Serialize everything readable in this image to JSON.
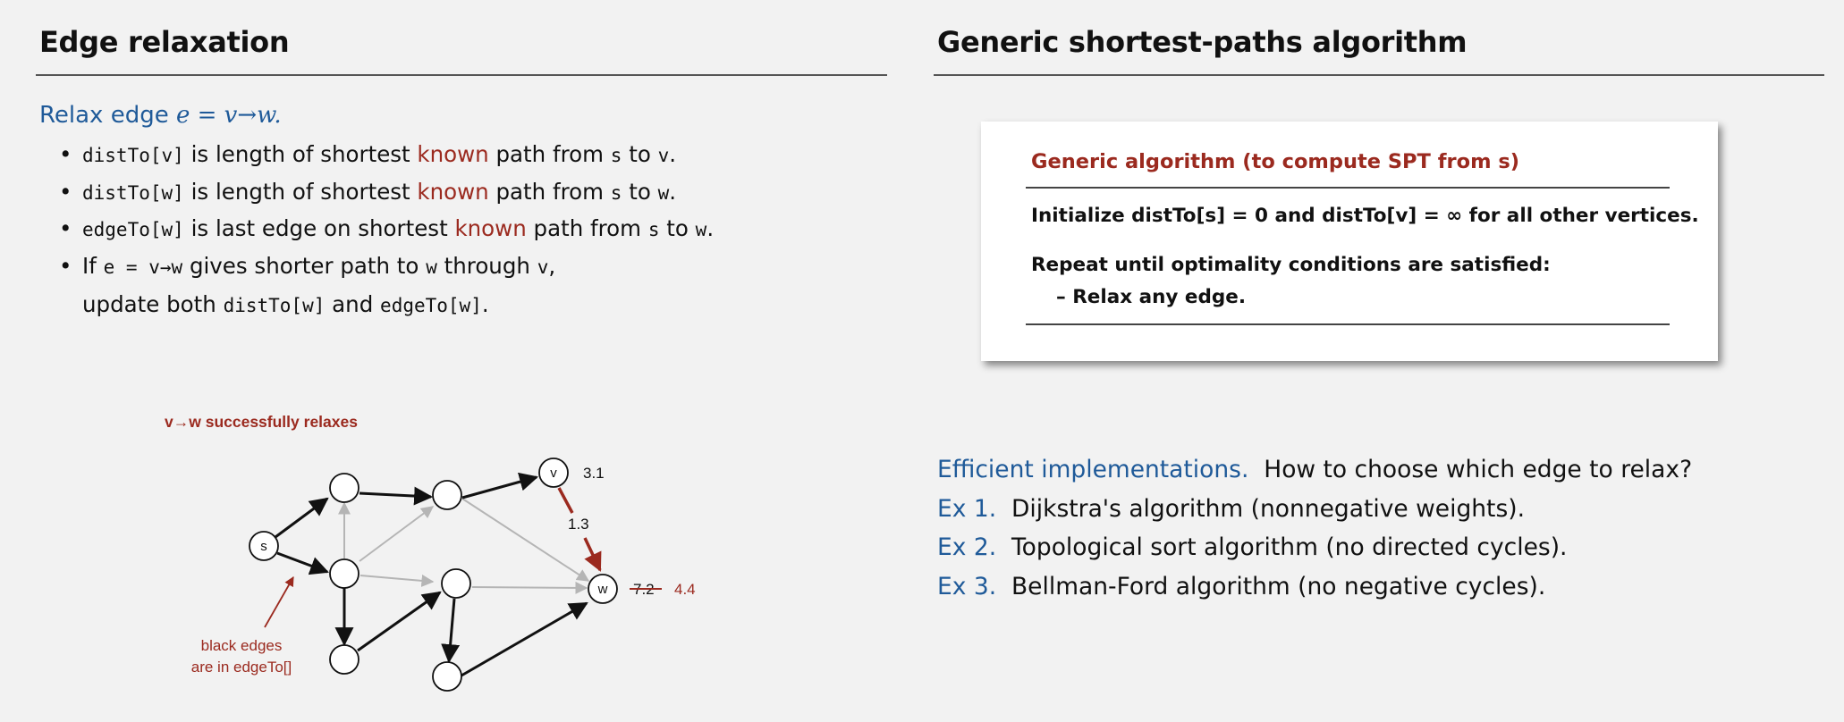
{
  "left": {
    "title": "Edge relaxation",
    "relax_label": "Relax edge ",
    "relax_edge": "e = v→w.",
    "bullets": [
      {
        "code": "distTo[v]",
        "t1": " is length of shortest ",
        "known": "known",
        "t2": " path from ",
        "s": "s",
        "t3": " to ",
        "end": "v",
        "t4": "."
      },
      {
        "code": "distTo[w]",
        "t1": " is length of shortest ",
        "known": "known",
        "t2": " path from ",
        "s": "s",
        "t3": " to ",
        "end": "w",
        "t4": "."
      },
      {
        "code": "edgeTo[w]",
        "t1": " is last edge on shortest ",
        "known": "known",
        "t2": " path from ",
        "s": "s",
        "t3": " to ",
        "end": "w",
        "t4": "."
      }
    ],
    "bullet4": {
      "if": "If ",
      "e": "e = v→w",
      "gives": " gives shorter path to ",
      "w": "w",
      "through": " through ",
      "v": "v",
      "comma": ",",
      "update": "update both ",
      "dist": "distTo[w]",
      "and": " and ",
      "edge": "edgeTo[w]",
      "period": "."
    },
    "diagram": {
      "caption": "v→w successfully relaxes",
      "label_s": "s",
      "label_v": "v",
      "label_w": "w",
      "dist_v": "3.1",
      "edge_weight": "1.3",
      "old_dist_w": "7.2",
      "new_dist_w": "4.4",
      "note_line1": "black edges",
      "note_line2": "are in edgeTo[]"
    }
  },
  "right": {
    "title": "Generic shortest-paths algorithm",
    "box": {
      "title": "Generic algorithm (to compute SPT from s)",
      "line1": "Initialize distTo[s] = 0 and distTo[v] = ∞ for all other vertices.",
      "line2": "Repeat until optimality conditions are satisfied:",
      "line3": "–  Relax any edge."
    },
    "impl": {
      "label": "Efficient implementations.",
      "question": "How to choose which edge to relax?",
      "examples": [
        {
          "label": "Ex 1.",
          "text": "Dijkstra's algorithm (nonnegative weights)."
        },
        {
          "label": "Ex 2.",
          "text": "Topological sort algorithm (no directed cycles)."
        },
        {
          "label": "Ex 3.",
          "text": "Bellman-Ford algorithm (no negative cycles)."
        }
      ]
    }
  },
  "colors": {
    "accent_blue": "#1f5a99",
    "accent_red": "#9b2a1f",
    "gray_edge": "#b5b5b5"
  }
}
